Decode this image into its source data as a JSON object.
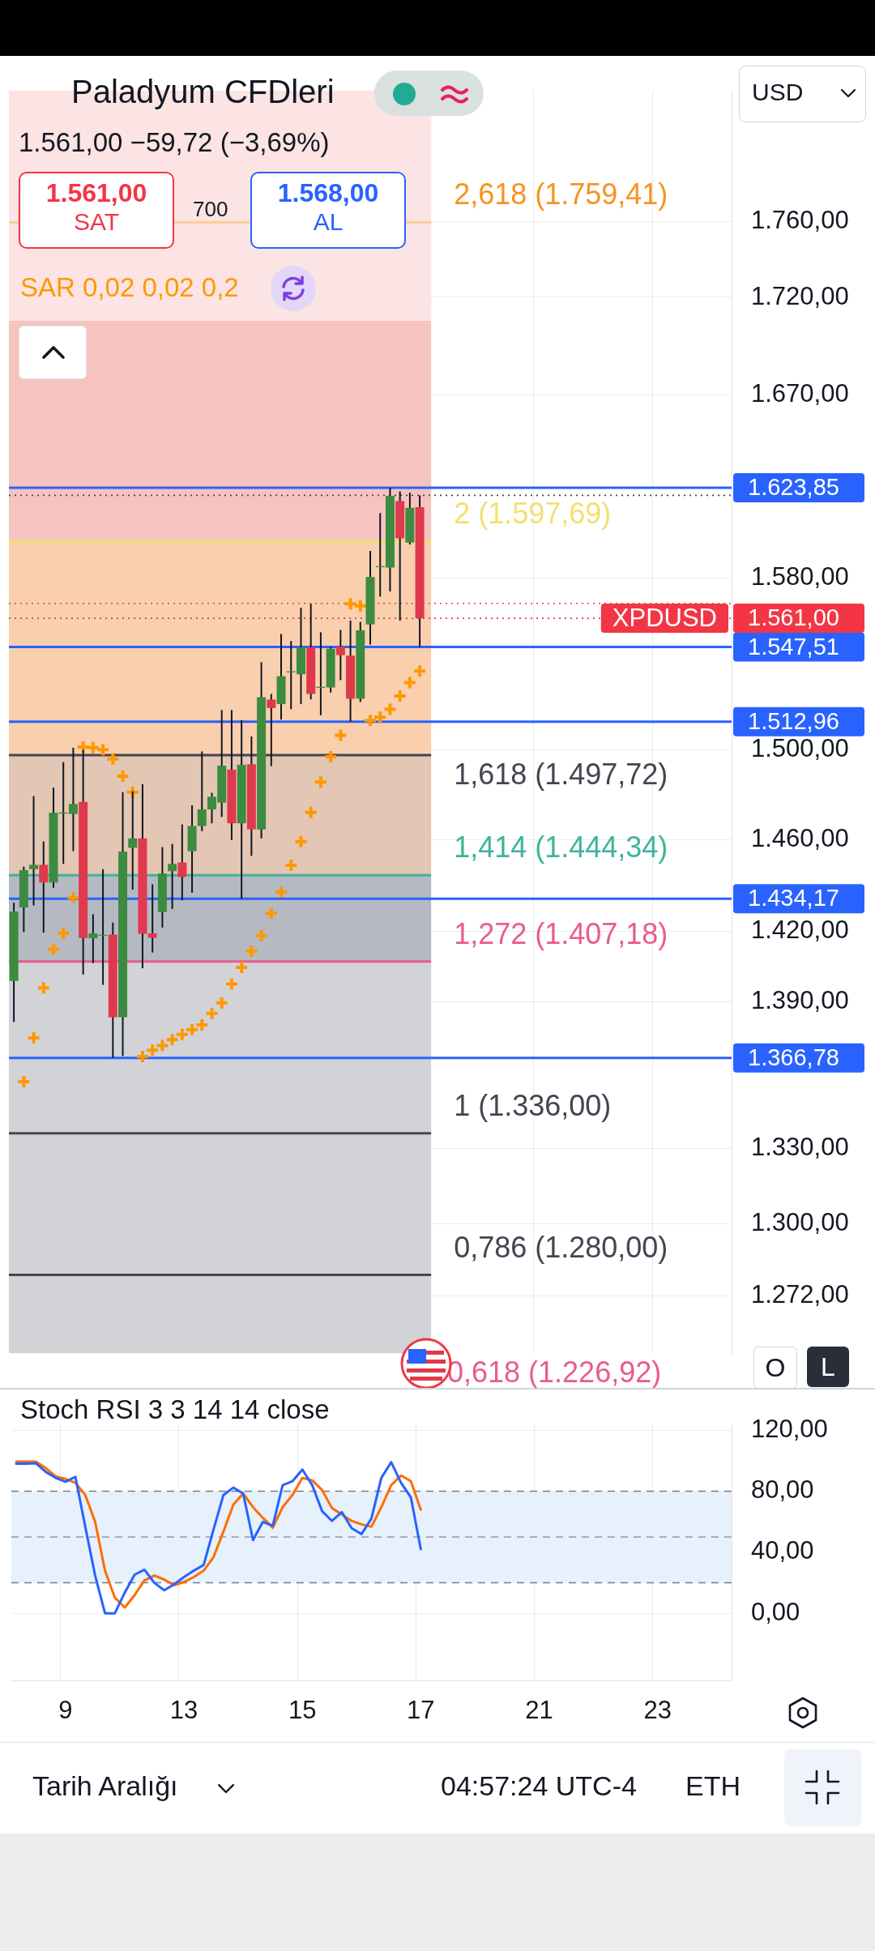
{
  "chart_data": [
    {
      "type": "candlestick",
      "title": "Paladyum CFDleri",
      "subtitle": "1.561,00 −59,72 (−3,69%)",
      "categories": [
        null,
        null,
        null,
        null,
        null,
        "9",
        null,
        null,
        null,
        null,
        null,
        null,
        null,
        null,
        null,
        null,
        null,
        "13",
        null,
        null,
        null,
        null,
        null,
        null,
        null,
        null,
        null,
        null,
        null,
        "15",
        null,
        null,
        null,
        null,
        null,
        null,
        null,
        null,
        null,
        null,
        null,
        "17",
        null,
        null,
        null,
        null,
        null,
        null,
        null,
        null,
        null,
        null,
        null,
        "21",
        null,
        null,
        null,
        null,
        null,
        null,
        null,
        null,
        null,
        null,
        null,
        "23",
        null,
        null,
        null,
        null,
        null,
        null,
        null
      ],
      "ohlc": [
        [
          1398.9,
          1432.4,
          1381.7,
          1428.6
        ],
        [
          1430.4,
          1448.1,
          1419.8,
          1446.6
        ],
        [
          1447.0,
          1479.3,
          1431.2,
          1448.9
        ],
        [
          1448.9,
          1459.2,
          1419.5,
          1441.2
        ],
        [
          1441.2,
          1483.1,
          1438.9,
          1471.9
        ],
        [
          1471.5,
          1494.6,
          1449.3,
          1472.0
        ],
        [
          1471.3,
          1501.1,
          1454.9,
          1475.8
        ],
        [
          1476.7,
          1500.2,
          1401.7,
          1417.2
        ],
        [
          1417.1,
          1427.4,
          1406.5,
          1419.2
        ],
        [
          1418.2,
          1447.0,
          1397.3,
          1418.6
        ],
        [
          1418.7,
          1423.8,
          1366.8,
          1383.7
        ],
        [
          1383.7,
          1481.1,
          1367.5,
          1454.7
        ],
        [
          1456.4,
          1481.5,
          1438.1,
          1460.5
        ],
        [
          1460.5,
          1484.7,
          1404.3,
          1419.0
        ],
        [
          1419.2,
          1440.4,
          1411.0,
          1417.3
        ],
        [
          1428.4,
          1456.7,
          1421.7,
          1445.1
        ],
        [
          1446.1,
          1458.1,
          1429.7,
          1449.3
        ],
        [
          1449.9,
          1466.7,
          1433.5,
          1443.6
        ],
        [
          1454.9,
          1475.2,
          1436.7,
          1466.0
        ],
        [
          1466.0,
          1499.4,
          1463.7,
          1473.4
        ],
        [
          1473.4,
          1480.8,
          1467.2,
          1479.0
        ],
        [
          1476.4,
          1518.3,
          1470.0,
          1493.0
        ],
        [
          1491.2,
          1518.3,
          1459.8,
          1467.2
        ],
        [
          1467.2,
          1513.7,
          1434.2,
          1493.4
        ],
        [
          1493.6,
          1506.2,
          1452.8,
          1464.5
        ],
        [
          1464.5,
          1540.4,
          1460.5,
          1524.2
        ],
        [
          1523.1,
          1525.7,
          1492.8,
          1519.2
        ],
        [
          1521.0,
          1553.6,
          1513.9,
          1533.9
        ],
        [
          1535.7,
          1550.3,
          1518.7,
          1536.2
        ],
        [
          1534.8,
          1565.9,
          1521.0,
          1547.4
        ],
        [
          1547.4,
          1567.8,
          1523.2,
          1525.7
        ],
        [
          1528.5,
          1554.4,
          1515.9,
          1529.0
        ],
        [
          1528.7,
          1547.5,
          1526.3,
          1546.7
        ],
        [
          1547.7,
          1555.5,
          1532.1,
          1543.7
        ],
        [
          1543.5,
          1559.9,
          1513.0,
          1523.5
        ],
        [
          1523.5,
          1559.3,
          1522.0,
          1555.3
        ],
        [
          1558.1,
          1593.1,
          1548.7,
          1580.6
        ],
        [
          1585.3,
          1611.4,
          1571.3,
          1585.8
        ],
        [
          1585.1,
          1623.85,
          1573.7,
          1619.8
        ],
        [
          1617.3,
          1622.0,
          1559.9,
          1599.2
        ],
        [
          1597.1,
          1621.4,
          1596.2,
          1614.0
        ],
        [
          1614.3,
          1620.1,
          1547.51,
          1561.0
        ],
        null,
        null,
        null,
        null,
        null,
        null,
        null,
        null,
        null,
        null,
        null,
        null,
        null,
        null,
        null,
        null,
        null,
        null,
        null,
        null,
        null,
        null,
        null,
        null,
        null,
        null,
        null,
        null,
        null,
        null,
        null
      ],
      "colors": [
        "#3d8b40",
        "#3d8b40",
        "#3d8b40",
        "#e0394e",
        "#3d8b40",
        "#3d8b40",
        "#3d8b40",
        "#e0394e",
        "#3d8b40",
        "#3d8b40",
        "#e0394e",
        "#3d8b40",
        "#3d8b40",
        "#e0394e",
        "#e0394e",
        "#3d8b40",
        "#3d8b40",
        "#e0394e",
        "#3d8b40",
        "#3d8b40",
        "#3d8b40",
        "#3d8b40",
        "#e0394e",
        "#3d8b40",
        "#e0394e",
        "#3d8b40",
        "#e0394e",
        "#3d8b40",
        "#3d8b40",
        "#3d8b40",
        "#e0394e",
        "#3d8b40",
        "#3d8b40",
        "#e0394e",
        "#e0394e",
        "#3d8b40",
        "#3d8b40",
        "#3d8b40",
        "#3d8b40",
        "#e0394e",
        "#3d8b40",
        "#e0394e",
        null,
        null,
        null,
        null,
        null,
        null,
        null,
        null,
        null,
        null,
        null,
        null,
        null,
        null,
        null,
        null,
        null,
        null,
        null,
        null,
        null,
        null,
        null,
        null,
        null,
        null,
        null,
        null,
        null,
        null,
        null
      ],
      "series": [
        {
          "type": "scatter",
          "name": "SAR 0,02 0,02 0,2",
          "color": "#ff9800",
          "marker": "cross",
          "values": [
            null,
            1357.0,
            1375.1,
            1396.0,
            1412.4,
            1419.2,
            1434.6,
            1501.4,
            1501.1,
            1500.2,
            1496.0,
            1488.2,
            1481.1,
            1367.3,
            1369.9,
            1371.9,
            1374.3,
            1376.5,
            1378.5,
            1380.5,
            1385.3,
            1389.7,
            1397.6,
            1404.7,
            1411.6,
            1418.3,
            1427.8,
            1437.0,
            1448.7,
            1459.1,
            1472.0,
            1485.6,
            1497.0,
            1506.8,
            1567.8,
            1566.9,
            1513.5,
            1515.0,
            1518.6,
            1524.8,
            1530.9,
            1536.3,
            null,
            null,
            null,
            null,
            null,
            null,
            null,
            null,
            null,
            null,
            null,
            null,
            null,
            null,
            null,
            null,
            null,
            null,
            null,
            null,
            null,
            null,
            null,
            null,
            null,
            null,
            null,
            null,
            null,
            null,
            null
          ]
        }
      ],
      "log": true,
      "ylim": [
        1250,
        1831
      ],
      "yticks": [
        {
          "value": 1272,
          "label": "1.272,00"
        },
        {
          "value": 1300,
          "label": "1.300,00"
        },
        {
          "value": 1330,
          "label": "1.330,00"
        },
        {
          "value": 1390,
          "label": "1.390,00"
        },
        {
          "value": 1420,
          "label": "1.420,00"
        },
        {
          "value": 1460,
          "label": "1.460,00"
        },
        {
          "value": 1500,
          "label": "1.500,00"
        },
        {
          "value": 1580,
          "label": "1.580,00"
        },
        {
          "value": 1670,
          "label": "1.670,00"
        },
        {
          "value": 1720,
          "label": "1.720,00"
        },
        {
          "value": 1760,
          "label": "1.760,00"
        }
      ],
      "grid": true,
      "tick_labels": "y",
      "bands": [
        {
          "axis": "y",
          "from": 1759.41,
          "to": 1831,
          "color": "#f6c3c0"
        },
        {
          "axis": "y",
          "from": 1597.69,
          "to": 1759.41,
          "color": "#f6c3c0"
        },
        {
          "axis": "y",
          "from": 1497.72,
          "to": 1597.69,
          "color": "#f9cfae"
        },
        {
          "axis": "y",
          "from": 1444.34,
          "to": 1497.72,
          "color": "#e3c6b3"
        },
        {
          "axis": "y",
          "from": 1407.18,
          "to": 1444.34,
          "color": "#b5bac2"
        },
        {
          "axis": "y",
          "from": 1336,
          "to": 1407.18,
          "color": "#d1d3d7"
        },
        {
          "axis": "y",
          "from": 1280,
          "to": 1336,
          "color": "#d1d3d7"
        },
        {
          "axis": "y",
          "from": 1250,
          "to": 1280,
          "color": "#d1d3d7"
        }
      ],
      "ref_lines": [
        {
          "axis": "y",
          "value": 1759.41,
          "label": "2,618 (1.759,41)",
          "color": "#f7931e"
        },
        {
          "axis": "y",
          "value": 1597.69,
          "label": "2 (1.597,69)",
          "color": "#f3e070"
        },
        {
          "axis": "y",
          "value": 1497.72,
          "label": "1,618 (1.497,72)",
          "color": "#434651"
        },
        {
          "axis": "y",
          "value": 1444.34,
          "label": "1,414 (1.444,34)",
          "color": "#3cb49a"
        },
        {
          "axis": "y",
          "value": 1407.18,
          "label": "1,272 (1.407,18)",
          "color": "#e85d8a"
        },
        {
          "axis": "y",
          "value": 1336,
          "label": "1 (1.336,00)",
          "color": "#434651"
        },
        {
          "axis": "y",
          "value": 1280,
          "label": "0,786 (1.280,00)",
          "color": "#434651"
        },
        {
          "axis": "y",
          "value": 1623.85,
          "label": "1.623,85",
          "color": "#2962ff"
        },
        {
          "axis": "y",
          "value": 1547.51,
          "label": "1.547,51",
          "color": "#2962ff"
        },
        {
          "axis": "y",
          "value": 1512.96,
          "label": "1.512,96",
          "color": "#2962ff"
        },
        {
          "axis": "y",
          "value": 1434.17,
          "label": "1.434,17",
          "color": "#2962ff"
        },
        {
          "axis": "y",
          "value": 1366.78,
          "label": "1.366,78",
          "color": "#2962ff"
        },
        {
          "axis": "y",
          "value": 1620.1,
          "color": "#434651",
          "line_style": "dotted"
        },
        {
          "axis": "y",
          "value": 1568,
          "color": "#f23645",
          "line_style": "dotted"
        },
        {
          "axis": "y",
          "value": 1561,
          "label": "1.561,00",
          "color": "#f23645",
          "line_style": "dotted"
        }
      ],
      "annotations": [
        "1.561,00",
        "SAT",
        "700",
        "1.568,00",
        "AL",
        "USD",
        {
          "text": "XPDUSD",
          "y": 1561
        },
        "0,618 (1.226,92)",
        "O",
        "L"
      ]
    },
    {
      "type": "line",
      "title": "Stoch RSI 3 3 14 14 close",
      "categories": [
        null,
        null,
        null,
        null,
        null,
        "9",
        null,
        null,
        null,
        null,
        null,
        null,
        null,
        null,
        null,
        null,
        null,
        "13",
        null,
        null,
        null,
        null,
        null,
        null,
        null,
        null,
        null,
        null,
        null,
        "15",
        null,
        null,
        null,
        null,
        null,
        null,
        null,
        null,
        null,
        null,
        null,
        "17",
        null,
        null,
        null,
        null,
        null,
        null,
        null,
        null,
        null,
        null,
        null,
        "21",
        null,
        null,
        null,
        null,
        null,
        null,
        null,
        null,
        null,
        null,
        null,
        "23",
        null,
        null,
        null,
        null,
        null,
        null,
        null
      ],
      "series": [
        {
          "color": "#2962ff",
          "values": [
            98,
            98,
            98.3,
            92.6,
            88.7,
            86.2,
            89.4,
            56.7,
            24.7,
            0,
            0,
            13.5,
            25.3,
            28.5,
            19.9,
            15.1,
            18.9,
            23.7,
            27.9,
            31.7,
            55,
            77.5,
            82.3,
            78.5,
            48,
            59.9,
            57.3,
            83.9,
            86.5,
            94.2,
            83.9,
            66.9,
            60.5,
            66.3,
            55.7,
            51.9,
            62.1,
            88.7,
            99,
            85.5,
            75.9,
            42,
            null,
            null,
            null,
            null,
            null,
            null,
            null,
            null,
            null,
            null,
            null,
            null,
            null,
            null,
            null,
            null,
            null,
            null,
            null,
            null,
            null,
            null,
            null,
            null,
            null,
            null,
            null,
            null,
            null,
            null,
            null
          ]
        },
        {
          "color": "#ff6d00",
          "values": [
            99.3,
            99.3,
            99.3,
            95.1,
            89.7,
            88,
            85.5,
            77.5,
            59.9,
            27.9,
            10.2,
            3.8,
            11.9,
            21.5,
            24.7,
            22.1,
            18.3,
            20.5,
            23.7,
            27.9,
            36.8,
            53.5,
            71.1,
            78.5,
            69.5,
            62.5,
            56,
            69.5,
            77.5,
            88.7,
            87.1,
            80.7,
            68.9,
            64.7,
            60.5,
            58.3,
            56.7,
            69.5,
            83.9,
            90.3,
            86.5,
            67.9,
            null,
            null,
            null,
            null,
            null,
            null,
            null,
            null,
            null,
            null,
            null,
            null,
            null,
            null,
            null,
            null,
            null,
            null,
            null,
            null,
            null,
            null,
            null,
            null,
            null,
            null,
            null,
            null,
            null,
            null,
            null
          ]
        }
      ],
      "ylim": [
        -44,
        124
      ],
      "yticks": [
        {
          "value": 0,
          "label": "0,00"
        },
        {
          "value": 40,
          "label": "40,00"
        },
        {
          "value": 80,
          "label": "80,00"
        },
        {
          "value": 120,
          "label": "120,00"
        }
      ],
      "grid": true,
      "bands": [
        {
          "axis": "y",
          "from": 20,
          "to": 80,
          "color": "#e6f1fc"
        }
      ],
      "ref_lines": [
        {
          "axis": "y",
          "value": 80,
          "color": "#787b86",
          "line_style": "dashed"
        },
        {
          "axis": "y",
          "value": 50,
          "color": "#9598a1",
          "line_style": "dashed"
        },
        {
          "axis": "y",
          "value": 20,
          "color": "#787b86",
          "line_style": "dashed"
        }
      ],
      "annotations": [
        "Tarih Aralığı",
        "04:57:24 UTC-4",
        "ETH"
      ]
    }
  ]
}
